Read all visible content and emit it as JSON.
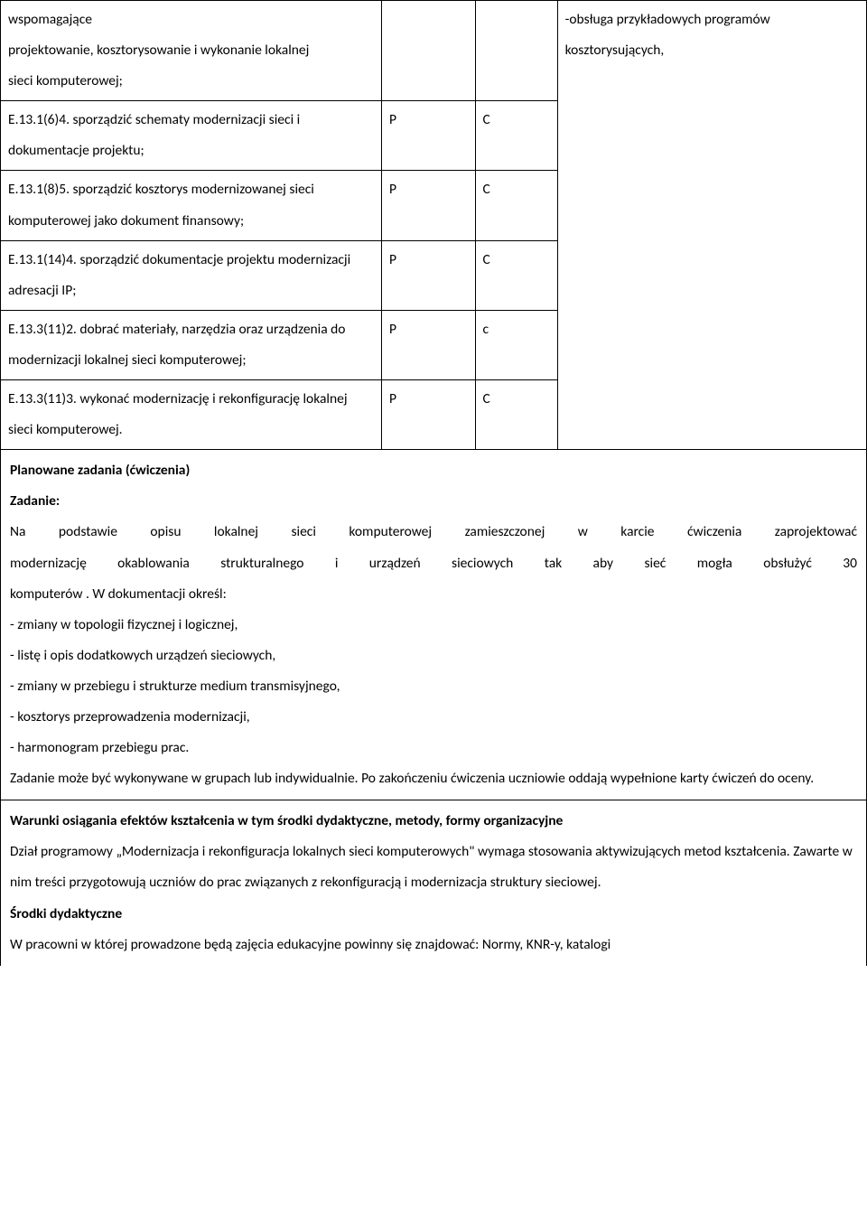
{
  "table": {
    "rows": [
      {
        "col1": "wspomagające\nprojektowanie, kosztorysowanie i wykonanie lokalnej\nsieci komputerowej;",
        "col2": "",
        "col3": ""
      },
      {
        "col1": "E.13.1(6)4. sporządzić schematy modernizacji sieci i dokumentacje projektu;",
        "col2": "P",
        "col3": "C"
      },
      {
        "col1": "E.13.1(8)5. sporządzić kosztorys modernizowanej sieci komputerowej jako dokument finansowy;",
        "col2": "P",
        "col3": "C"
      },
      {
        "col1": "E.13.1(14)4. sporządzić dokumentacje projektu modernizacji adresacji IP;",
        "col2": "P",
        "col3": "C"
      },
      {
        "col1": "E.13.3(11)2. dobrać materiały, narzędzia oraz urządzenia do modernizacji lokalnej sieci komputerowej;",
        "col2": "P",
        "col3": "c"
      },
      {
        "col1": "E.13.3(11)3. wykonać modernizację i rekonfigurację lokalnej sieci komputerowej.",
        "col2": "P",
        "col3": "C"
      }
    ],
    "col4_text": "-obsługa przykładowych programów kosztorysujących,"
  },
  "section1": {
    "title": "Planowane zadania (ćwiczenia)",
    "subtitle": "Zadanie:",
    "p1_line1": "Na podstawie opisu lokalnej sieci komputerowej zamieszczonej w karcie ćwiczenia zaprojektować",
    "p1_line2": "modernizację okablowania strukturalnego i urządzeń sieciowych tak aby sieć mogła obsłużyć 30",
    "p1_line3": "komputerów . W dokumentacji określ:",
    "bullets": [
      "- zmiany w topologii fizycznej i logicznej,",
      "- listę i opis dodatkowych urządzeń sieciowych,",
      "- zmiany w przebiegu i strukturze medium transmisyjnego,",
      "- kosztorys przeprowadzenia modernizacji,",
      "- harmonogram przebiegu prac."
    ],
    "p2": "Zadanie może być wykonywane w grupach lub indywidualnie. Po zakończeniu ćwiczenia uczniowie oddają wypełnione karty ćwiczeń do oceny."
  },
  "section2": {
    "title": "Warunki osiągania efektów kształcenia w tym środki dydaktyczne, metody, formy organizacyjne",
    "p1": "Dział programowy „Modernizacja i rekonfiguracja lokalnych sieci komputerowych\" wymaga stosowania aktywizujących metod kształcenia. Zawarte w nim treści przygotowują uczniów do prac związanych z rekonfiguracją i modernizacja struktury sieciowej.",
    "subtitle": "Środki dydaktyczne",
    "p2": "W pracowni w której prowadzone będą zajęcia edukacyjne powinny się znajdować: Normy, KNR-y, katalogi"
  }
}
